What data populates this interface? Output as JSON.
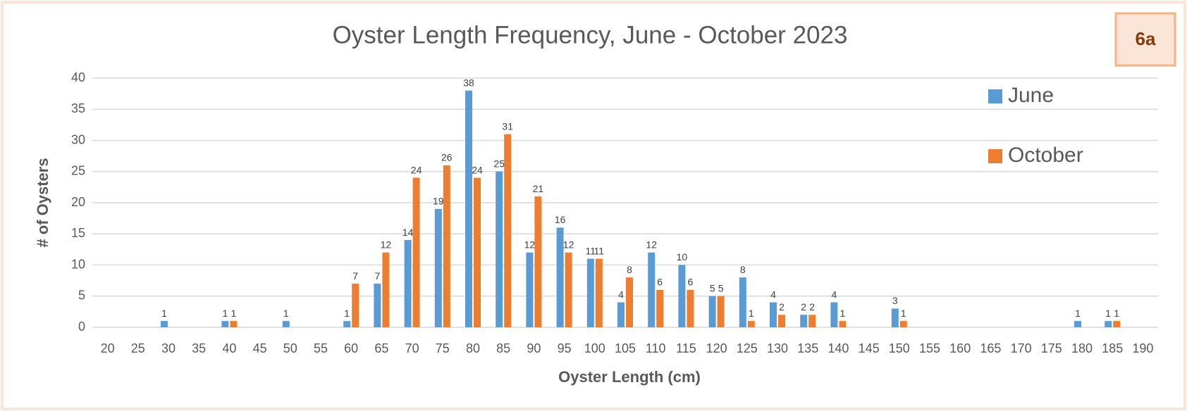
{
  "chart_data": {
    "type": "bar",
    "title": "Oyster Length Frequency, June - October 2023",
    "annotation": "6a",
    "x_label": "Oyster Length (cm)",
    "y_label": "# of Oysters",
    "categories": [
      20,
      25,
      30,
      35,
      40,
      45,
      50,
      55,
      60,
      65,
      70,
      75,
      80,
      85,
      90,
      95,
      100,
      105,
      110,
      115,
      120,
      125,
      130,
      135,
      140,
      145,
      150,
      155,
      160,
      165,
      170,
      175,
      180,
      185,
      190
    ],
    "series": [
      {
        "name": "June",
        "color": "#5b9bd5",
        "values": [
          0,
          0,
          1,
          0,
          1,
          0,
          1,
          0,
          1,
          7,
          14,
          19,
          38,
          25,
          12,
          16,
          11,
          4,
          12,
          10,
          5,
          8,
          4,
          2,
          4,
          0,
          3,
          0,
          0,
          0,
          0,
          0,
          1,
          1,
          0
        ]
      },
      {
        "name": "October",
        "color": "#ed7d31",
        "values": [
          0,
          0,
          0,
          0,
          1,
          0,
          0,
          0,
          7,
          12,
          24,
          26,
          24,
          31,
          21,
          12,
          11,
          8,
          6,
          6,
          5,
          1,
          2,
          2,
          1,
          0,
          1,
          0,
          0,
          0,
          0,
          0,
          0,
          1,
          0
        ]
      }
    ],
    "ylim": [
      0,
      40
    ],
    "yticks": [
      0,
      5,
      10,
      15,
      20,
      25,
      30,
      35,
      40
    ],
    "grid": true,
    "legend": "upper-right"
  }
}
